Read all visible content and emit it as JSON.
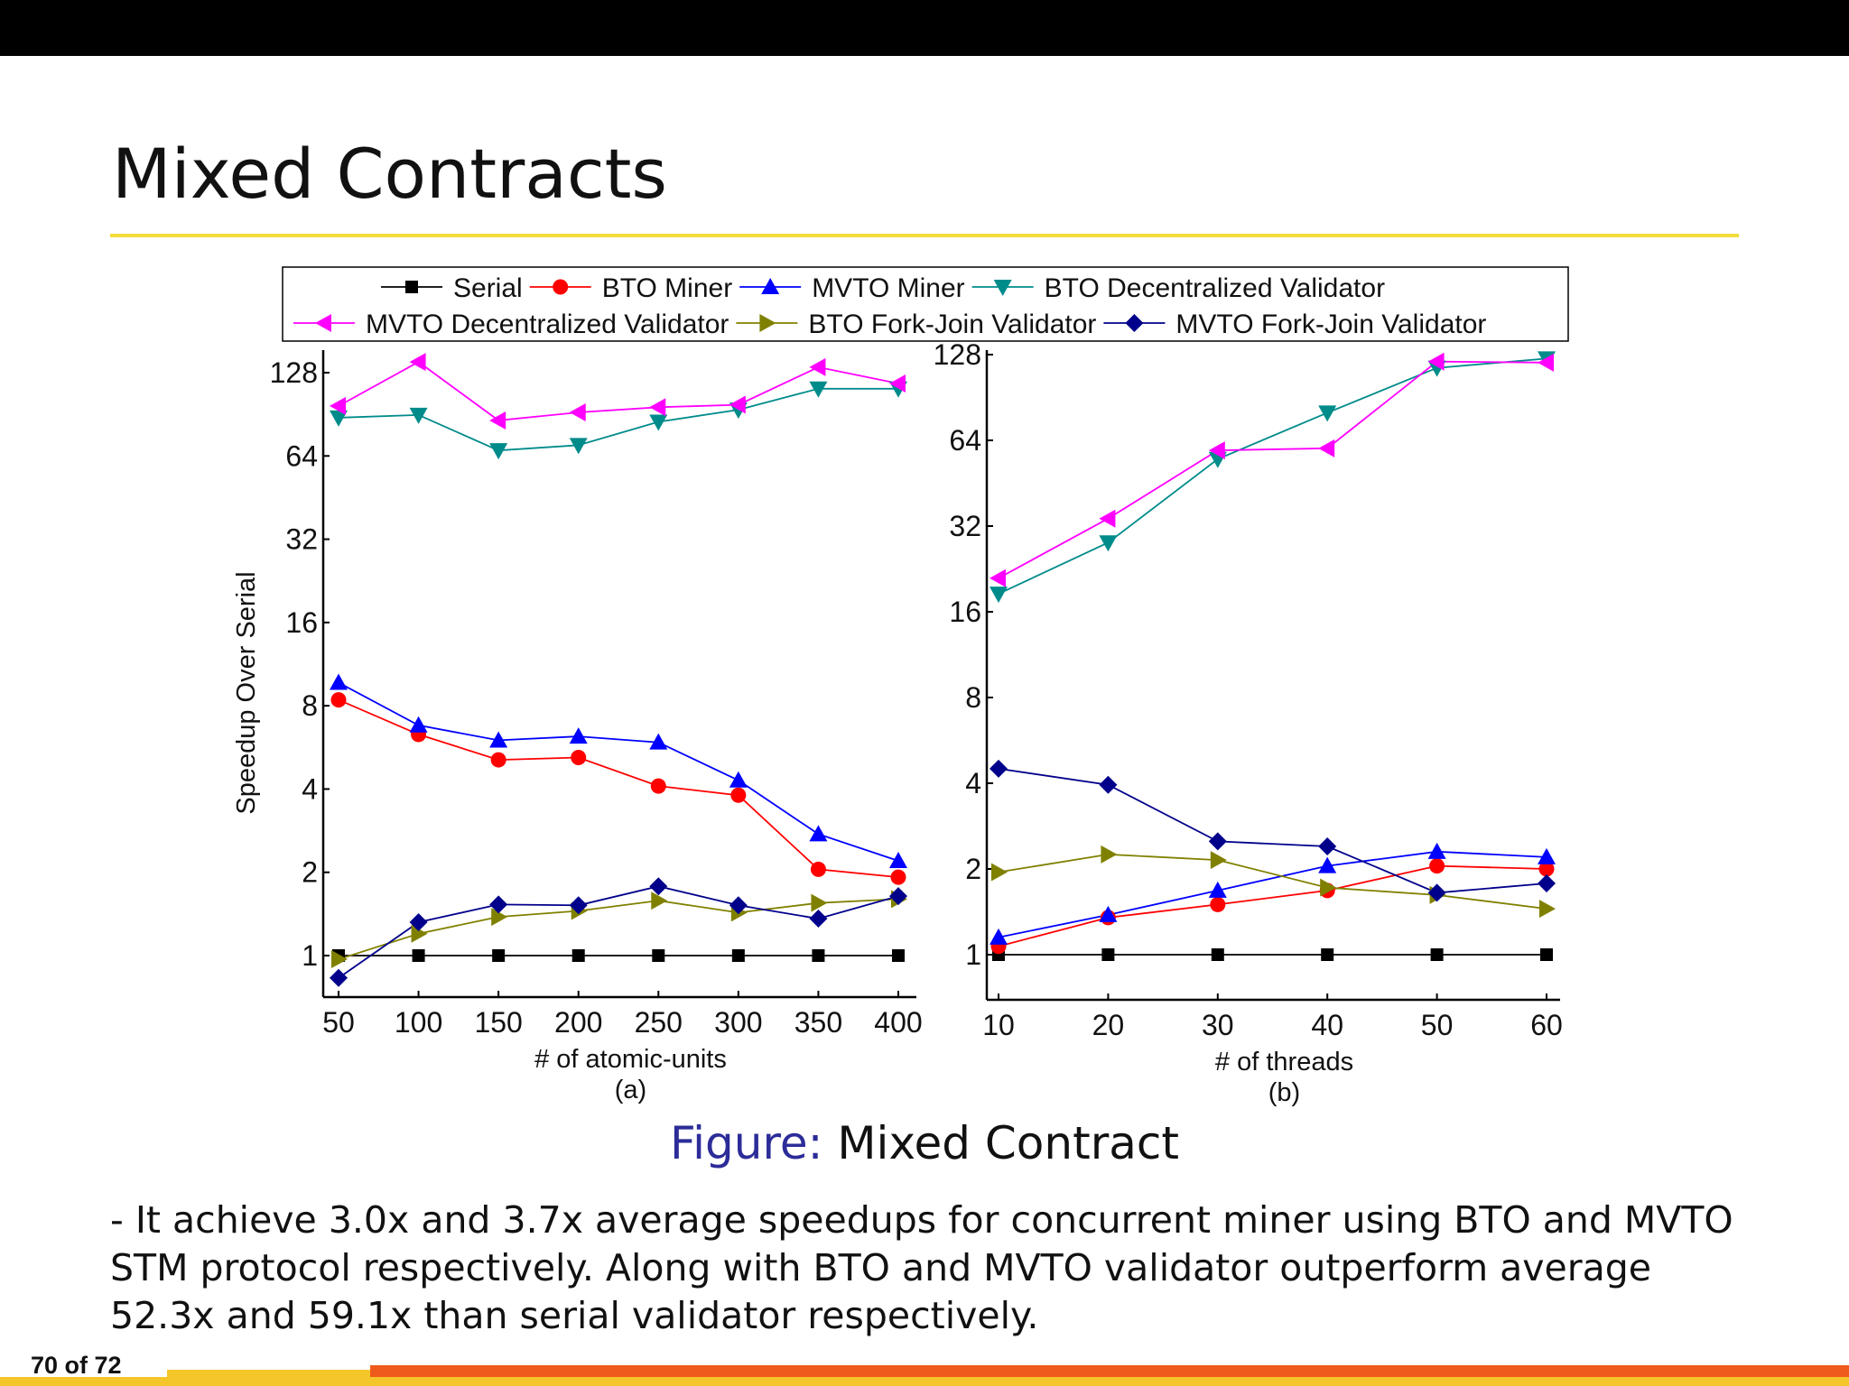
{
  "slide": {
    "title": "Mixed Contracts",
    "caption_label": "Figure:",
    "caption_text": "Mixed Contract",
    "paragraph_lines": [
      "- It achieve 3.0x and 3.7x average speedups for concurrent miner using BTO and MVTO",
      "STM protocol respectively. Along with BTO and MVTO validator outperform average",
      "52.3x and 59.1x than serial validator respectively."
    ],
    "page_number": "70 of 72"
  },
  "colors": {
    "serial": "#000000",
    "bto_miner": "#ff0000",
    "mvto_miner": "#0000ff",
    "bto_dec": "#008b8b",
    "mvto_dec": "#ff00ff",
    "bto_fj": "#808000",
    "mvto_fj": "#00008b"
  },
  "chart_data": [
    {
      "type": "line",
      "id": "a",
      "sublabel": "(a)",
      "xlabel": "# of atomic-units",
      "ylabel": "Speedup Over Serial",
      "yscale": "log2",
      "ylim": [
        0.75,
        150
      ],
      "yticks": [
        1,
        2,
        4,
        8,
        16,
        32,
        64,
        128
      ],
      "x": [
        50,
        100,
        150,
        200,
        250,
        300,
        350,
        400
      ],
      "series": [
        {
          "name": "Serial",
          "key": "serial",
          "marker": "square",
          "values": [
            1,
            1,
            1,
            1,
            1,
            1,
            1,
            1
          ]
        },
        {
          "name": "BTO Miner",
          "key": "bto_miner",
          "marker": "circle",
          "values": [
            8.4,
            6.3,
            5.1,
            5.2,
            4.1,
            3.8,
            2.05,
            1.92
          ]
        },
        {
          "name": "MVTO Miner",
          "key": "mvto_miner",
          "marker": "triangle-up",
          "values": [
            9.7,
            6.8,
            6.0,
            6.2,
            5.9,
            4.3,
            2.75,
            2.2
          ]
        },
        {
          "name": "BTO Decentralized Validator",
          "key": "bto_dec",
          "marker": "triangle-down",
          "values": [
            88,
            90,
            67,
            70,
            85,
            94,
            112,
            112
          ]
        },
        {
          "name": "MVTO Decentralized Validator",
          "key": "mvto_dec",
          "marker": "triangle-left",
          "values": [
            97,
            140,
            86,
            92,
            96,
            98,
            134,
            117
          ]
        },
        {
          "name": "BTO Fork-Join Validator",
          "key": "bto_fj",
          "marker": "triangle-right",
          "values": [
            0.97,
            1.2,
            1.38,
            1.45,
            1.58,
            1.43,
            1.55,
            1.6
          ]
        },
        {
          "name": "MVTO Fork-Join Validator",
          "key": "mvto_fj",
          "marker": "diamond",
          "values": [
            0.83,
            1.32,
            1.53,
            1.52,
            1.78,
            1.52,
            1.36,
            1.64
          ]
        }
      ]
    },
    {
      "type": "line",
      "id": "b",
      "sublabel": "(b)",
      "xlabel": "# of threads",
      "ylabel": "",
      "yscale": "log2",
      "ylim": [
        0.75,
        128
      ],
      "yticks": [
        1,
        2,
        4,
        8,
        16,
        32,
        64,
        128
      ],
      "x": [
        10,
        20,
        30,
        40,
        50,
        60
      ],
      "series": [
        {
          "name": "Serial",
          "key": "serial",
          "marker": "square",
          "values": [
            1,
            1,
            1,
            1,
            1,
            1
          ]
        },
        {
          "name": "BTO Miner",
          "key": "bto_miner",
          "marker": "circle",
          "values": [
            1.07,
            1.35,
            1.5,
            1.68,
            2.05,
            2.0
          ]
        },
        {
          "name": "MVTO Miner",
          "key": "mvto_miner",
          "marker": "triangle-up",
          "values": [
            1.15,
            1.38,
            1.68,
            2.05,
            2.3,
            2.2
          ]
        },
        {
          "name": "BTO Decentralized Validator",
          "key": "bto_dec",
          "marker": "triangle-down",
          "values": [
            18.5,
            28,
            55,
            80,
            115,
            124
          ]
        },
        {
          "name": "MVTO Decentralized Validator",
          "key": "mvto_dec",
          "marker": "triangle-left",
          "values": [
            21,
            34,
            59,
            60,
            121,
            120
          ]
        },
        {
          "name": "BTO Fork-Join Validator",
          "key": "bto_fj",
          "marker": "triangle-right",
          "values": [
            1.95,
            2.25,
            2.15,
            1.72,
            1.62,
            1.45
          ]
        },
        {
          "name": "MVTO Fork-Join Validator",
          "key": "mvto_fj",
          "marker": "diamond",
          "values": [
            4.5,
            3.95,
            2.5,
            2.4,
            1.65,
            1.78
          ]
        }
      ]
    }
  ],
  "legend": {
    "row1": [
      "serial",
      "bto_miner",
      "mvto_miner",
      "bto_dec"
    ],
    "row2": [
      "mvto_dec",
      "bto_fj",
      "mvto_fj"
    ]
  }
}
